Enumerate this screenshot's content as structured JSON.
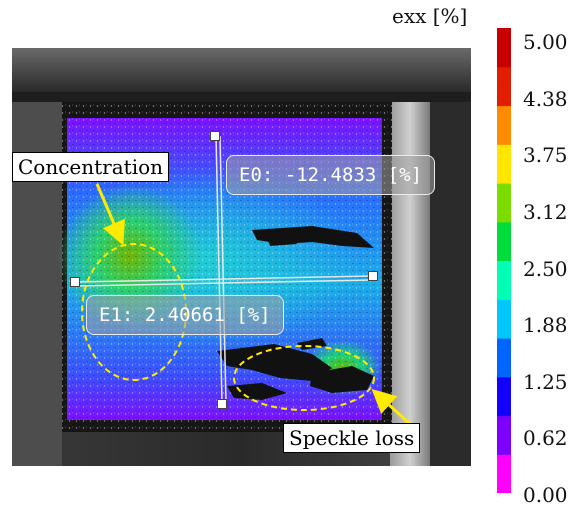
{
  "colorbar": {
    "title": "exx [%]",
    "ticks": [
      "5.00",
      "4.38",
      "3.75",
      "3.12",
      "2.50",
      "1.88",
      "1.25",
      "0.62",
      "0.00"
    ],
    "range": [
      0.0,
      5.0
    ],
    "colors": [
      "#ff00ff",
      "#7d00ff",
      "#1400ff",
      "#0064ff",
      "#00c8ff",
      "#00ffb4",
      "#00dc3c",
      "#7cdc00",
      "#ffe600",
      "#ff8c00",
      "#e11e00",
      "#c80000"
    ]
  },
  "overlays": {
    "e0_label": "E0: -12.4833 [%]",
    "e1_label": "E1: 2.40661 [%]"
  },
  "callouts": {
    "concentration": "Concentration",
    "speckle_loss": "Speckle loss"
  },
  "annotation_color": "#ffeb00"
}
